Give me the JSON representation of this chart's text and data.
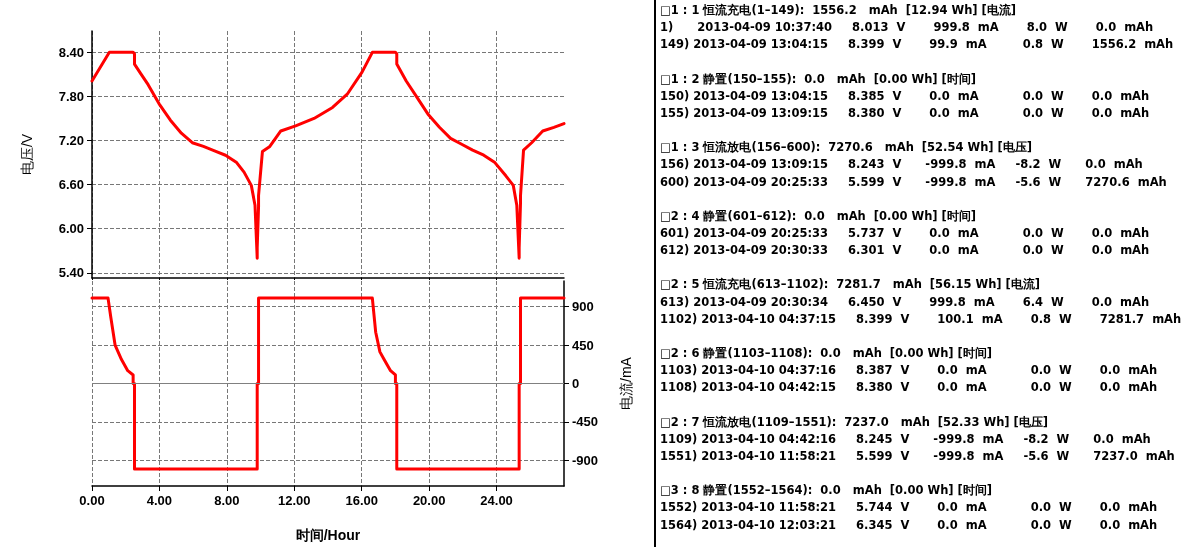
{
  "chart_data": [
    {
      "type": "line",
      "ylabel": "电压/V",
      "xlim": [
        0,
        28
      ],
      "xticks": [
        {
          "value": 0,
          "label": null
        },
        {
          "value": 4,
          "label": null
        },
        {
          "value": 8,
          "label": null
        },
        {
          "value": 12,
          "label": null
        },
        {
          "value": 16,
          "label": null
        },
        {
          "value": 20,
          "label": null
        },
        {
          "value": 24,
          "label": null
        }
      ],
      "ylim": [
        5.33,
        8.69
      ],
      "yticks": [
        {
          "value": 5.4,
          "label": "5.40"
        },
        {
          "value": 6,
          "label": "6.00"
        },
        {
          "value": 6.6,
          "label": "6.60"
        },
        {
          "value": 7.2,
          "label": "7.20"
        },
        {
          "value": 7.8,
          "label": "7.80"
        },
        {
          "value": 8.4,
          "label": "8.40"
        }
      ],
      "grid": true,
      "line_style": "solid",
      "tick_labels": "y",
      "series": [
        {
          "color": "#ff0000",
          "x": [
            0,
            1.03,
            2.44,
            2.52,
            2.52,
            2.89,
            3.33,
            3.98,
            4.64,
            5.3,
            5.95,
            6.61,
            7.27,
            7.92,
            8.58,
            9.02,
            9.45,
            9.67,
            9.8,
            9.8,
            9.88,
            9.88,
            10.11,
            10.55,
            11.2,
            12.08,
            13.17,
            14.27,
            15.14,
            16.02,
            16.63,
            18.0,
            18.08,
            18.08,
            18.64,
            19.3,
            19.96,
            20.61,
            21.27,
            21.93,
            22.58,
            23.24,
            23.9,
            24.55,
            24.99,
            25.2,
            25.34,
            25.34,
            25.42,
            25.42,
            25.6,
            26.08,
            26.74,
            27.4,
            28
          ],
          "values": [
            8.01,
            8.4,
            8.4,
            8.38,
            8.24,
            8.11,
            7.96,
            7.7,
            7.48,
            7.3,
            7.17,
            7.12,
            7.06,
            7.0,
            6.9,
            6.77,
            6.59,
            6.32,
            5.6,
            5.74,
            6.3,
            6.45,
            7.05,
            7.12,
            7.33,
            7.4,
            7.5,
            7.65,
            7.83,
            8.13,
            8.4,
            8.4,
            8.38,
            8.24,
            8.01,
            7.78,
            7.55,
            7.38,
            7.23,
            7.15,
            7.07,
            7.0,
            6.9,
            6.72,
            6.59,
            6.32,
            5.6,
            5.74,
            6.35,
            6.45,
            7.07,
            7.17,
            7.33,
            7.38,
            7.43
          ]
        }
      ]
    },
    {
      "type": "line",
      "xlabel": "时间/Hour",
      "y2label": "电流/mA",
      "xlim": [
        0,
        28
      ],
      "xticks": [
        {
          "value": 0,
          "label": "0.00"
        },
        {
          "value": 4,
          "label": "4.00"
        },
        {
          "value": 8,
          "label": "8.00"
        },
        {
          "value": 12,
          "label": "12.00"
        },
        {
          "value": 16,
          "label": "16.00"
        },
        {
          "value": 20,
          "label": "20.00"
        },
        {
          "value": 24,
          "label": "24.00"
        }
      ],
      "y2lim": [
        -1200,
        1200
      ],
      "y2ticks": [
        -900,
        -450,
        0,
        450,
        900
      ],
      "grid": true,
      "line_style": "solid",
      "ref_lines": [
        {
          "axis": "y2",
          "value": 0,
          "color": "#808080"
        }
      ],
      "series": [
        {
          "color": "#ff0000",
          "axis": "y2",
          "x": [
            0,
            0.95,
            1.12,
            1.37,
            1.75,
            2.12,
            2.44,
            2.44,
            2.52,
            2.52,
            9.8,
            9.8,
            9.88,
            9.88,
            16.63,
            16.83,
            17.08,
            17.33,
            17.71,
            18.0,
            18.0,
            18.08,
            18.08,
            25.34,
            25.34,
            25.42,
            25.42,
            28
          ],
          "values": [
            1000,
            1000,
            770,
            450,
            280,
            150,
            100,
            0,
            0,
            -1000,
            -1000,
            0,
            0,
            1000,
            1000,
            600,
            370,
            280,
            150,
            100,
            0,
            0,
            -1000,
            -1000,
            0,
            0,
            1000,
            1000
          ]
        }
      ]
    },
    {
      "type": "other",
      "annotations": [
        "□1 : 1 恒流充电(1–149):  1556.2   mAh  [12.94 Wh] [电流]",
        "1)      2013-04-09 10:37:40     8.013  V       999.8  mA       8.0  W       0.0  mAh",
        "149) 2013-04-09 13:04:15     8.399  V       99.9  mA         0.8  W       1556.2  mAh",
        "□1 : 2 静置(150–155):  0.0   mAh  [0.00 Wh] [时间]",
        "150) 2013-04-09 13:04:15     8.385  V       0.0  mA           0.0  W       0.0  mAh",
        "155) 2013-04-09 13:09:15     8.380  V       0.0  mA           0.0  W       0.0  mAh",
        "□1 : 3 恒流放电(156–600):  7270.6   mAh  [52.54 Wh] [电压]",
        "156) 2013-04-09 13:09:15     8.243  V      -999.8  mA     -8.2  W      0.0  mAh",
        "600) 2013-04-09 20:25:33     5.599  V      -999.8  mA     -5.6  W      7270.6  mAh",
        "□2 : 4 静置(601–612):  0.0   mAh  [0.00 Wh] [时间]",
        "601) 2013-04-09 20:25:33     5.737  V       0.0  mA           0.0  W       0.0  mAh",
        "612) 2013-04-09 20:30:33     6.301  V       0.0  mA           0.0  W       0.0  mAh",
        "□2 : 5 恒流充电(613–1102):  7281.7   mAh  [56.15 Wh] [电流]",
        "613) 2013-04-09 20:30:34     6.450  V       999.8  mA       6.4  W       0.0  mAh",
        "1102) 2013-04-10 04:37:15     8.399  V       100.1  mA       0.8  W       7281.7  mAh",
        "□2 : 6 静置(1103–1108):  0.0   mAh  [0.00 Wh] [时间]",
        "1103) 2013-04-10 04:37:16     8.387  V       0.0  mA           0.0  W       0.0  mAh",
        "1108) 2013-04-10 04:42:15     8.380  V       0.0  mA           0.0  W       0.0  mAh",
        "□2 : 7 恒流放电(1109–1551):  7237.0   mAh  [52.33 Wh] [电压]",
        "1109) 2013-04-10 04:42:16     8.245  V      -999.8  mA     -8.2  W      0.0  mAh",
        "1551) 2013-04-10 11:58:21     5.599  V      -999.8  mA     -5.6  W      7237.0  mAh",
        "□3 : 8 静置(1552–1564):  0.0   mAh  [0.00 Wh] [时间]",
        "1552) 2013-04-10 11:58:21     5.744  V       0.0  mA           0.0  W       0.0  mAh",
        "1564) 2013-04-10 12:03:21     6.345  V       0.0  mA           0.0  W       0.0  mAh"
      ]
    }
  ]
}
